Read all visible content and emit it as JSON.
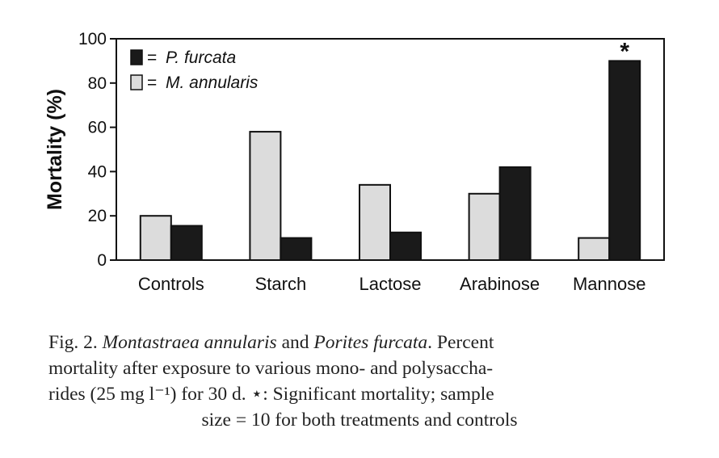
{
  "chart_data": {
    "type": "bar",
    "categories": [
      "Controls",
      "Starch",
      "Lactose",
      "Arabinose",
      "Mannose"
    ],
    "series": [
      {
        "name": "M. annularis",
        "color": "#dcdcdc",
        "values": [
          20,
          58,
          34,
          30,
          10
        ]
      },
      {
        "name": "P. furcata",
        "color": "#1a1a1a",
        "values": [
          15.5,
          10,
          12.5,
          42,
          90
        ]
      }
    ],
    "ylabel": "Mortality (%)",
    "xlabel": "",
    "ylim": [
      0,
      100
    ],
    "yticks": [
      0,
      20,
      40,
      60,
      80,
      100
    ],
    "legend": [
      {
        "prefix": "= ",
        "label": "P. furcata",
        "swatch": "#1a1a1a"
      },
      {
        "prefix": "= ",
        "label": "M. annularis",
        "swatch": "#dcdcdc"
      }
    ],
    "legend_position": "top-left",
    "annotations": [
      {
        "category": "Mannose",
        "series": "P. furcata",
        "text": "*"
      }
    ]
  },
  "caption": {
    "lines": [
      {
        "parts": [
          {
            "text": "Fig. 2. ",
            "italic": false
          },
          {
            "text": "Montastraea annularis",
            "italic": true
          },
          {
            "text": " and ",
            "italic": false
          },
          {
            "text": "Porites furcata",
            "italic": true
          },
          {
            "text": ". Percent",
            "italic": false
          }
        ]
      },
      {
        "parts": [
          {
            "text": "mortality after exposure to various mono- and polysaccha-",
            "italic": false
          }
        ]
      },
      {
        "parts": [
          {
            "text": "rides (25 mg l⁻¹) for 30 d. ⋆: Significant mortality; sample",
            "italic": false
          }
        ]
      },
      {
        "parts": [
          {
            "text": "size = 10 for both treatments and controls",
            "italic": false
          }
        ]
      }
    ]
  }
}
